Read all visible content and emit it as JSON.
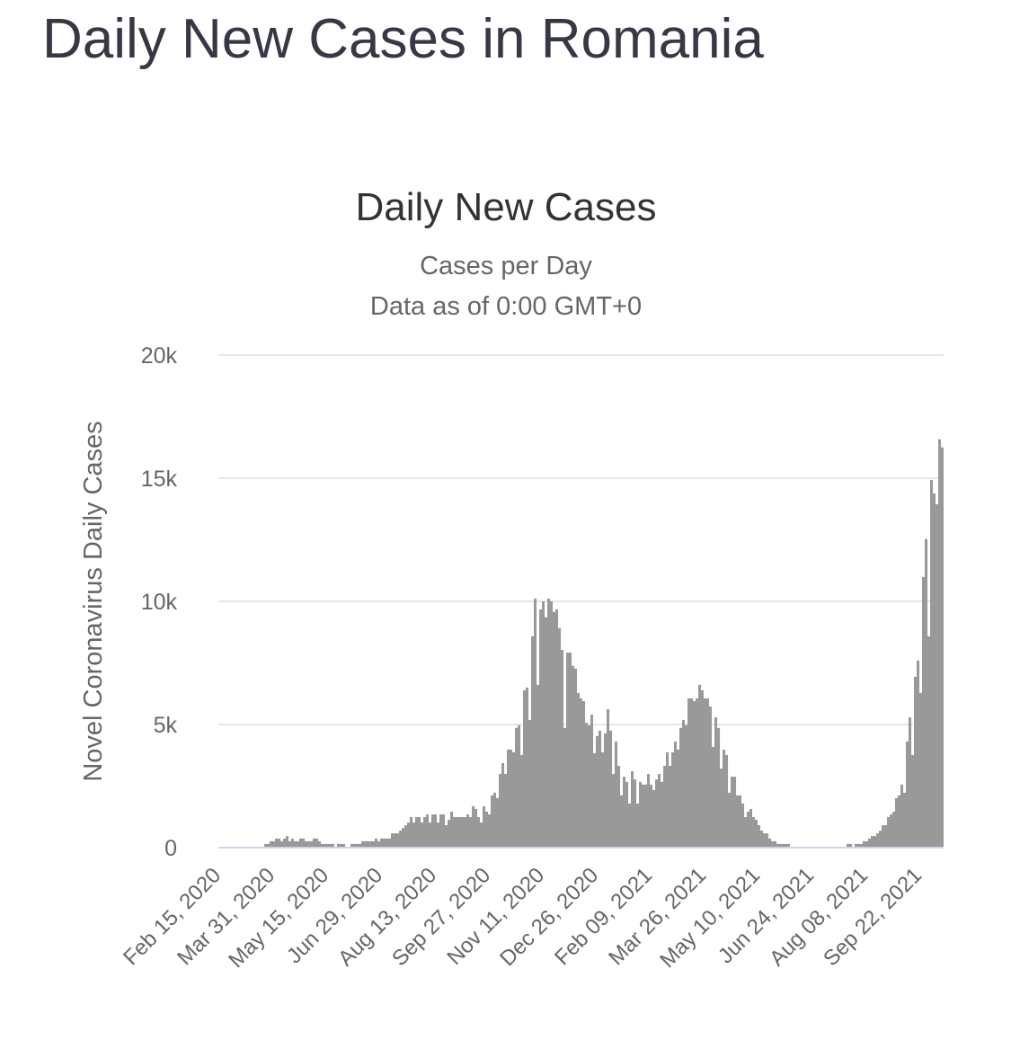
{
  "page": {
    "title": "Daily New Cases in Romania"
  },
  "colors": {
    "bar": "#999999",
    "grid": "#e6e6e6",
    "baseline": "#ccd6eb",
    "text": "#666666"
  },
  "chart_data": {
    "type": "bar",
    "title": "Daily New Cases",
    "subtitle": [
      "Cases per Day",
      "Data as of 0:00 GMT+0"
    ],
    "xlabel": "",
    "ylabel": "Novel Coronavirus Daily Cases",
    "ylim": [
      0,
      20000
    ],
    "yticks": [
      0,
      5000,
      10000,
      15000,
      20000
    ],
    "ytick_labels": [
      "0",
      "5k",
      "10k",
      "15k",
      "20k"
    ],
    "x_range": [
      "Feb 15, 2020",
      "Oct 2021"
    ],
    "xtick_labels": [
      "Feb 15, 2020",
      "Mar 31, 2020",
      "May 15, 2020",
      "Jun 29, 2020",
      "Aug 13, 2020",
      "Sep 27, 2020",
      "Nov 11, 2020",
      "Dec 26, 2020",
      "Feb 09, 2021",
      "Mar 26, 2021",
      "May 10, 2021",
      "Jun 24, 2021",
      "Aug 08, 2021",
      "Sep 22, 2021"
    ],
    "xtick_every_n_bars": 20,
    "grid": true,
    "legend": "none",
    "values": [
      0,
      0,
      0,
      0,
      0,
      0,
      0,
      0,
      0,
      0,
      0,
      0,
      0,
      0,
      0,
      0,
      0,
      150,
      150,
      260,
      260,
      370,
      370,
      260,
      370,
      470,
      260,
      370,
      260,
      260,
      370,
      370,
      260,
      260,
      260,
      370,
      370,
      260,
      150,
      150,
      150,
      150,
      150,
      0,
      150,
      150,
      150,
      0,
      0,
      150,
      150,
      150,
      150,
      260,
      260,
      260,
      260,
      260,
      370,
      260,
      370,
      370,
      370,
      370,
      580,
      580,
      580,
      690,
      800,
      910,
      1020,
      1240,
      1020,
      1240,
      1240,
      1020,
      1240,
      1350,
      1020,
      1350,
      1350,
      1020,
      1350,
      1350,
      910,
      1130,
      1460,
      1240,
      1240,
      1240,
      1240,
      1240,
      1350,
      1240,
      1680,
      1570,
      1240,
      1020,
      1680,
      1460,
      1350,
      2120,
      2230,
      2010,
      2990,
      3430,
      2990,
      3980,
      3980,
      3870,
      4860,
      4970,
      3760,
      6390,
      6500,
      5180,
      8580,
      10110,
      6610,
      9670,
      10000,
      9350,
      10110,
      10000,
      9570,
      9670,
      8910,
      8030,
      4860,
      7920,
      7920,
      7380,
      7270,
      6280,
      6060,
      5950,
      5070,
      4970,
      5400,
      3830,
      4530,
      4750,
      3870,
      4640,
      5620,
      4750,
      2990,
      4310,
      3320,
      2120,
      2880,
      2670,
      1790,
      3100,
      2770,
      1790,
      2670,
      2560,
      2560,
      2990,
      2560,
      2340,
      2770,
      2990,
      2670,
      3320,
      3870,
      3320,
      3870,
      4310,
      3980,
      4860,
      5180,
      4970,
      6060,
      6060,
      5950,
      6060,
      6610,
      6390,
      6060,
      6060,
      5730,
      4090,
      5290,
      4860,
      3210,
      3980,
      3760,
      2230,
      2880,
      2880,
      2120,
      2120,
      1790,
      1240,
      1460,
      1570,
      1240,
      1130,
      910,
      690,
      580,
      580,
      370,
      260,
      260,
      150,
      150,
      150,
      150,
      150,
      0,
      0,
      0,
      0,
      0,
      0,
      0,
      0,
      0,
      0,
      0,
      0,
      0,
      0,
      0,
      0,
      0,
      0,
      0,
      0,
      0,
      150,
      150,
      0,
      150,
      150,
      150,
      260,
      260,
      370,
      470,
      470,
      580,
      690,
      910,
      910,
      1240,
      1350,
      1460,
      2010,
      2120,
      2560,
      2230,
      4310,
      5290,
      3760,
      6940,
      7600,
      6280,
      10990,
      12530,
      8580,
      14930,
      14380,
      13940,
      16580,
      16250
    ]
  }
}
